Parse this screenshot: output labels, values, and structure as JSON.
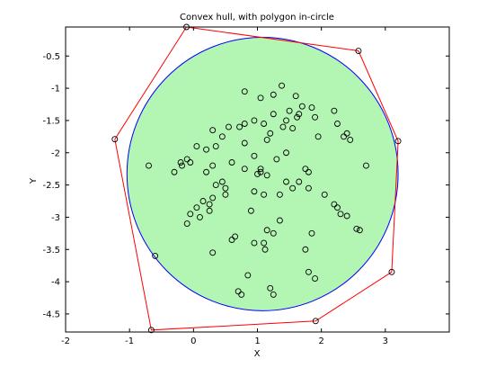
{
  "chart_data": {
    "type": "scatter",
    "title": "Convex hull, with polygon in-circle",
    "xlabel": "X",
    "ylabel": "Y",
    "xlim": [
      -2,
      4
    ],
    "ylim": [
      -4.78,
      -0.05
    ],
    "xticks": [
      -2,
      -1,
      0,
      1,
      2,
      3
    ],
    "xtick_labels": [
      "-2",
      "-1",
      "0",
      "1",
      "2",
      "3"
    ],
    "yticks": [
      -0.5,
      -1,
      -1.5,
      -2,
      -2.5,
      -3,
      -3.5,
      -4,
      -4.5
    ],
    "ytick_labels": [
      "-0.5",
      "-1",
      "-1.5",
      "-2",
      "-2.5",
      "-3",
      "-3.5",
      "-4",
      "-4.5"
    ],
    "grid": false,
    "colors": {
      "hull": "#ff0000",
      "circle_fill": "#b3f5b3",
      "circle_edge": "#0000ff",
      "markers": "#000000"
    },
    "incircle": {
      "center": [
        1.08,
        -2.33
      ],
      "radius": 2.12
    },
    "hull": [
      [
        -0.11,
        -0.05
      ],
      [
        2.58,
        -0.42
      ],
      [
        3.2,
        -1.82
      ],
      [
        3.1,
        -3.85
      ],
      [
        1.91,
        -4.61
      ],
      [
        -0.66,
        -4.75
      ],
      [
        -1.23,
        -1.79
      ],
      [
        -0.11,
        -0.05
      ]
    ],
    "points": [
      [
        0.8,
        -1.05
      ],
      [
        1.38,
        -0.96
      ],
      [
        1.05,
        -1.15
      ],
      [
        1.25,
        -1.1
      ],
      [
        1.6,
        -1.12
      ],
      [
        1.7,
        -1.28
      ],
      [
        1.65,
        -1.4
      ],
      [
        1.5,
        -1.35
      ],
      [
        1.45,
        -1.5
      ],
      [
        1.62,
        -1.45
      ],
      [
        1.85,
        -1.3
      ],
      [
        2.2,
        -1.35
      ],
      [
        1.9,
        -1.45
      ],
      [
        1.55,
        -1.62
      ],
      [
        1.4,
        -1.6
      ],
      [
        1.25,
        -1.4
      ],
      [
        1.1,
        -1.55
      ],
      [
        1.2,
        -1.7
      ],
      [
        0.95,
        -1.5
      ],
      [
        0.8,
        -1.55
      ],
      [
        0.72,
        -1.6
      ],
      [
        0.55,
        -1.6
      ],
      [
        0.45,
        -1.75
      ],
      [
        0.3,
        -1.65
      ],
      [
        0.35,
        -1.9
      ],
      [
        0.2,
        -1.95
      ],
      [
        0.05,
        -1.9
      ],
      [
        -0.1,
        -2.1
      ],
      [
        -0.2,
        -2.15
      ],
      [
        -0.3,
        -2.3
      ],
      [
        -0.18,
        -2.2
      ],
      [
        -0.05,
        -2.15
      ],
      [
        -0.7,
        -2.2
      ],
      [
        0.6,
        -2.15
      ],
      [
        0.3,
        -2.2
      ],
      [
        0.2,
        -2.3
      ],
      [
        0.8,
        -2.25
      ],
      [
        0.95,
        -2.05
      ],
      [
        0.8,
        -1.85
      ],
      [
        1.15,
        -1.8
      ],
      [
        1.3,
        -2.1
      ],
      [
        1.45,
        -2.0
      ],
      [
        1.05,
        -2.25
      ],
      [
        1.05,
        -2.3
      ],
      [
        1.15,
        -2.35
      ],
      [
        1.0,
        -2.33
      ],
      [
        1.75,
        -2.25
      ],
      [
        1.8,
        -2.3
      ],
      [
        1.95,
        -1.75
      ],
      [
        2.25,
        -1.55
      ],
      [
        2.35,
        -1.75
      ],
      [
        2.4,
        -1.7
      ],
      [
        2.45,
        -1.8
      ],
      [
        2.7,
        -2.2
      ],
      [
        1.65,
        -2.45
      ],
      [
        1.55,
        -2.55
      ],
      [
        1.45,
        -2.45
      ],
      [
        1.8,
        -2.55
      ],
      [
        2.05,
        -2.65
      ],
      [
        0.3,
        -2.7
      ],
      [
        0.15,
        -2.75
      ],
      [
        0.05,
        -2.85
      ],
      [
        0.25,
        -2.8
      ],
      [
        0.5,
        -2.65
      ],
      [
        0.5,
        -2.55
      ],
      [
        0.45,
        -2.45
      ],
      [
        0.35,
        -2.5
      ],
      [
        -0.05,
        -2.95
      ],
      [
        0.1,
        -3.0
      ],
      [
        0.25,
        -2.9
      ],
      [
        -0.1,
        -3.1
      ],
      [
        0.9,
        -2.9
      ],
      [
        0.95,
        -2.6
      ],
      [
        1.1,
        -2.65
      ],
      [
        1.35,
        -2.65
      ],
      [
        2.2,
        -2.8
      ],
      [
        2.25,
        -2.85
      ],
      [
        2.3,
        -2.95
      ],
      [
        2.4,
        -2.98
      ],
      [
        2.55,
        -3.18
      ],
      [
        1.85,
        -3.25
      ],
      [
        1.75,
        -3.5
      ],
      [
        1.35,
        -3.05
      ],
      [
        1.15,
        -3.2
      ],
      [
        1.1,
        -3.4
      ],
      [
        1.25,
        -3.25
      ],
      [
        0.95,
        -3.4
      ],
      [
        1.12,
        -3.5
      ],
      [
        0.65,
        -3.3
      ],
      [
        0.6,
        -3.35
      ],
      [
        0.3,
        -3.55
      ],
      [
        0.85,
        -3.9
      ],
      [
        1.8,
        -3.85
      ],
      [
        1.9,
        -3.95
      ],
      [
        0.7,
        -4.15
      ],
      [
        0.75,
        -4.2
      ],
      [
        1.2,
        -4.1
      ],
      [
        1.25,
        -4.2
      ],
      [
        -0.6,
        -3.6
      ],
      [
        2.6,
        -3.2
      ]
    ]
  }
}
